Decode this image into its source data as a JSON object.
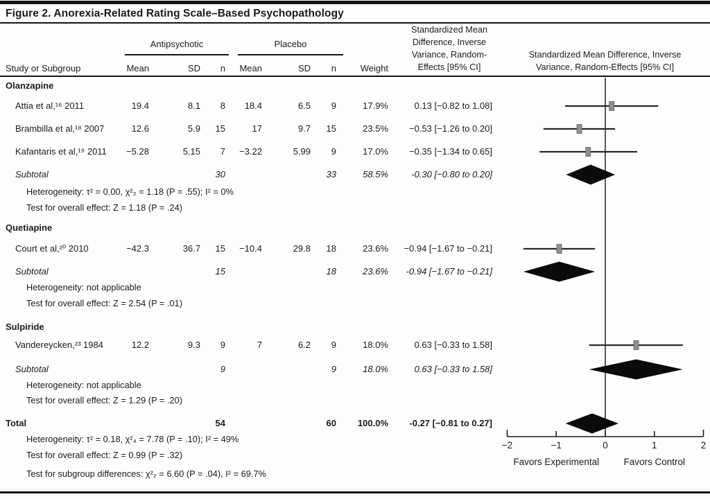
{
  "figure": {
    "title": "Figure 2. Anorexia-Related Rating Scale–Based Psychopathology"
  },
  "table_header": {
    "study": "Study or Subgroup",
    "group1": "Antipsychotic",
    "group2": "Placebo",
    "mean1": "Mean",
    "sd1": "SD",
    "n1": "n",
    "mean2": "Mean",
    "sd2": "SD",
    "n2": "n",
    "weight": "Weight",
    "smd_lines": [
      "Standardized Mean",
      "Difference, Inverse",
      "Variance, Random-",
      "Effects [95% CI]"
    ],
    "plot_lines": [
      "Standardized Mean Difference, Inverse",
      "Variance, Random-Effects [95% CI]"
    ]
  },
  "chart_data": {
    "type": "forest",
    "x_axis": {
      "min": -2,
      "max": 2,
      "ticks": [
        -2,
        -1,
        0,
        1,
        2
      ],
      "left_label": "Favors Experimental",
      "right_label": "Favors Control"
    },
    "colors": {
      "marker_fill": "#8d8f92",
      "marker_edge": "#5c5e60",
      "ci_line": "#272727",
      "diamond": "#0b0b0b"
    },
    "groups": [
      {
        "name": "Olanzapine",
        "studies": [
          {
            "label": "Attia et al,¹⁶ 2011",
            "mean1": "19.4",
            "sd1": "8.1",
            "n1": "8",
            "mean2": "18.4",
            "sd2": "6.5",
            "n2": "9",
            "weight": "17.9%",
            "smd": "0.13 [−0.82 to 1.08]",
            "est": 0.13,
            "lo": -0.82,
            "hi": 1.08
          },
          {
            "label": "Brambilla et al,¹⁸ 2007",
            "mean1": "12.6",
            "sd1": "5.9",
            "n1": "15",
            "mean2": "17",
            "sd2": "9.7",
            "n2": "15",
            "weight": "23.5%",
            "smd": "−0.53 [−1.26 to 0.20]",
            "est": -0.53,
            "lo": -1.26,
            "hi": 0.2
          },
          {
            "label": "Kafantaris et al,¹⁹ 2011",
            "mean1": "−5.28",
            "sd1": "5.15",
            "n1": "7",
            "mean2": "−3.22",
            "sd2": "5.99",
            "n2": "9",
            "weight": "17.0%",
            "smd": "−0.35 [−1.34 to 0.65]",
            "est": -0.35,
            "lo": -1.34,
            "hi": 0.65
          }
        ],
        "subtotal": {
          "label": "Subtotal",
          "n1": "30",
          "n2": "33",
          "weight": "58.5%",
          "smd": "-0.30 [−0.80 to 0.20]",
          "est": -0.3,
          "lo": -0.8,
          "hi": 0.2
        },
        "stats": [
          "Heterogeneity: τ² = 0.00, χ²₂ = 1.18 (P = .55); I² = 0%",
          "Test for overall effect: Z = 1.18 (P = .24)"
        ]
      },
      {
        "name": "Quetiapine",
        "studies": [
          {
            "label": "Court et al,²⁰ 2010",
            "mean1": "−42.3",
            "sd1": "36.7",
            "n1": "15",
            "mean2": "−10.4",
            "sd2": "29.8",
            "n2": "18",
            "weight": "23.6%",
            "smd": "−0.94 [−1.67 to −0.21]",
            "est": -0.94,
            "lo": -1.67,
            "hi": -0.21
          }
        ],
        "subtotal": {
          "label": "Subtotal",
          "n1": "15",
          "n2": "18",
          "weight": "23.6%",
          "smd": "-0.94 [−1.67 to −0.21]",
          "est": -0.94,
          "lo": -1.67,
          "hi": -0.21
        },
        "stats": [
          "Heterogeneity: not applicable",
          "Test for overall effect: Z = 2.54 (P = .01)"
        ]
      },
      {
        "name": "Sulpiride",
        "studies": [
          {
            "label": "Vandereycken,²³ 1984",
            "mean1": "12.2",
            "sd1": "9.3",
            "n1": "9",
            "mean2": "7",
            "sd2": "6.2",
            "n2": "9",
            "weight": "18.0%",
            "smd": "0.63 [−0.33 to 1.58]",
            "est": 0.63,
            "lo": -0.33,
            "hi": 1.58
          }
        ],
        "subtotal": {
          "label": "Subtotal",
          "n1": "9",
          "n2": "9",
          "weight": "18.0%",
          "smd": "0.63 [−0.33 to 1.58]",
          "est": 0.63,
          "lo": -0.33,
          "hi": 1.58
        },
        "stats": [
          "Heterogeneity: not applicable",
          "Test for overall effect: Z = 1.29 (P = .20)"
        ]
      }
    ],
    "total": {
      "label": "Total",
      "n1": "54",
      "n2": "60",
      "weight": "100.0%",
      "smd": "-0.27 [−0.81 to 0.27]",
      "est": -0.27,
      "lo": -0.81,
      "hi": 0.27
    },
    "total_stats": [
      "Heterogeneity: τ² = 0.18, χ²₄ = 7.78 (P = .10); I² = 49%",
      "Test for overall effect: Z = 0.99 (P = .32)",
      "Test for subgroup differences: χ²₂ = 6.60 (P = .04), I² = 69.7%"
    ]
  }
}
